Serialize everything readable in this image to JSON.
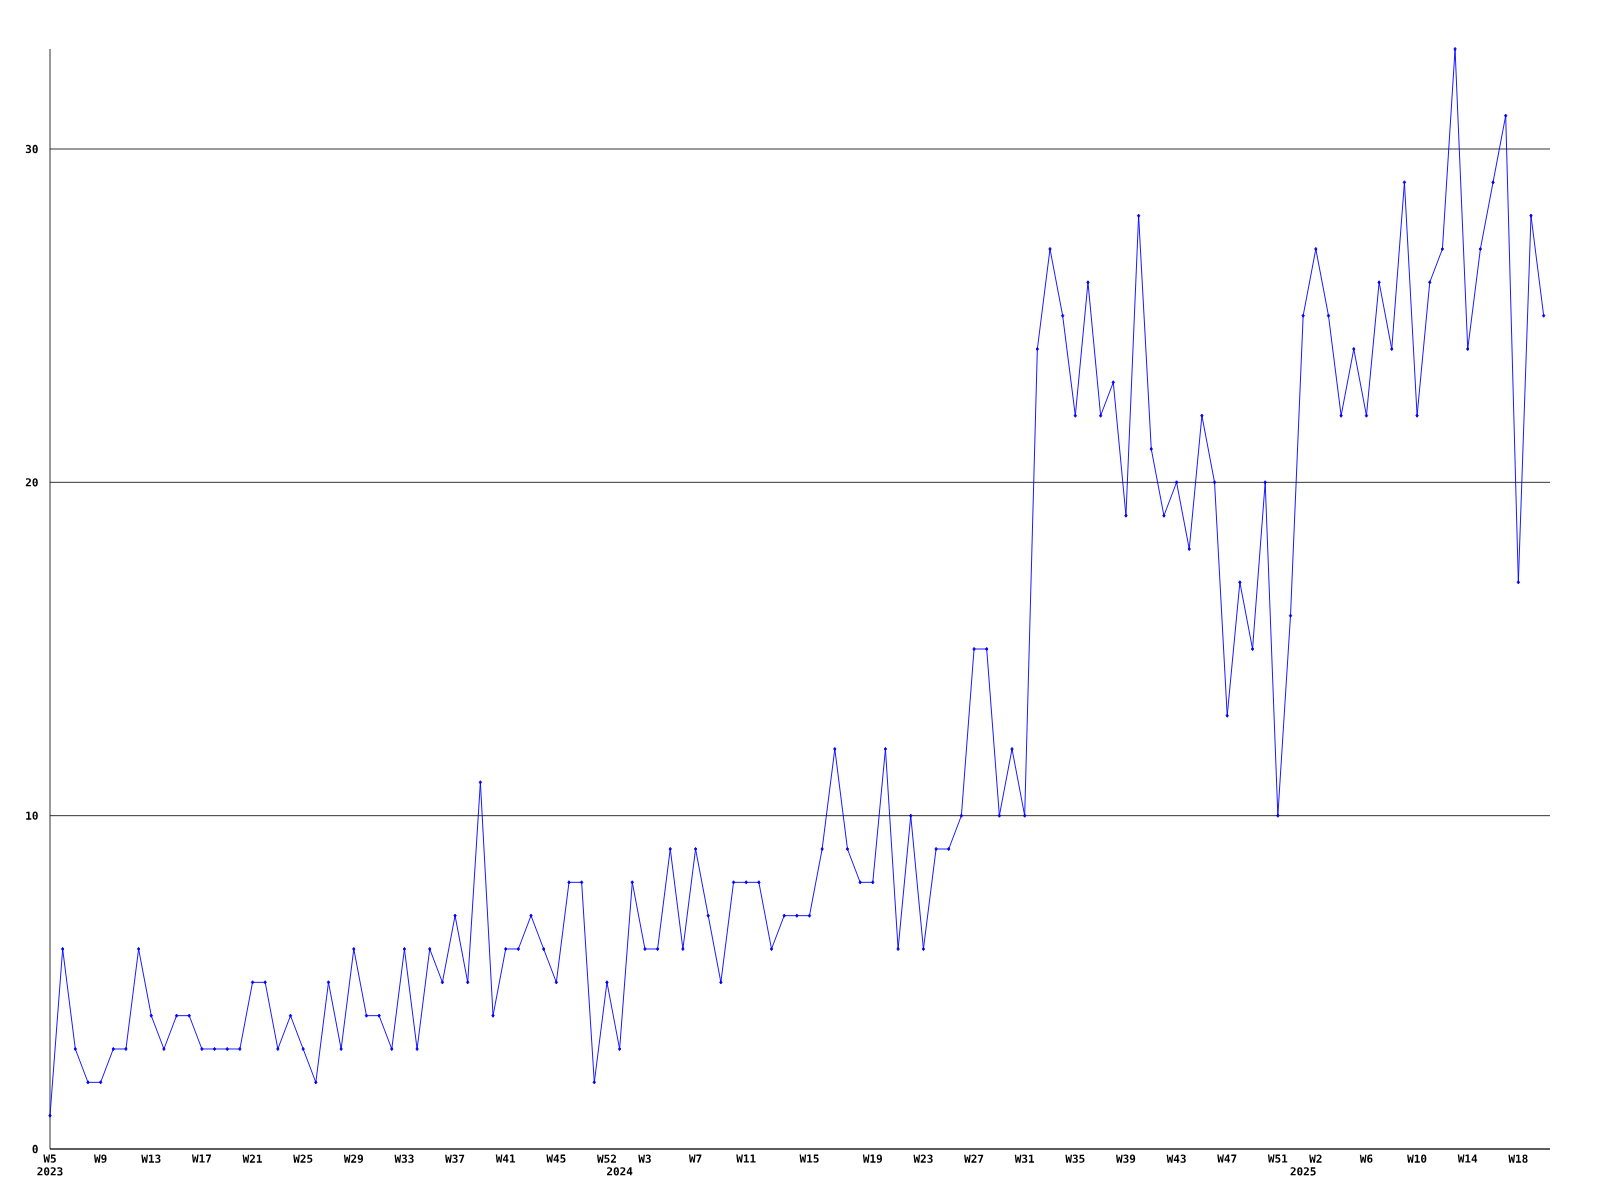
{
  "chart_data": {
    "type": "line",
    "categories": [
      "W5",
      null,
      null,
      null,
      "W9",
      null,
      null,
      null,
      "W13",
      null,
      null,
      null,
      "W17",
      null,
      null,
      null,
      "W21",
      null,
      null,
      null,
      "W25",
      null,
      null,
      null,
      "W29",
      null,
      null,
      null,
      "W33",
      null,
      null,
      null,
      "W37",
      null,
      null,
      null,
      "W41",
      null,
      null,
      null,
      "W45",
      null,
      null,
      null,
      "W52",
      null,
      null,
      "W3",
      null,
      null,
      null,
      "W7",
      null,
      null,
      null,
      "W11",
      null,
      null,
      null,
      null,
      "W15",
      null,
      null,
      null,
      null,
      "W19",
      null,
      null,
      null,
      "W23",
      null,
      null,
      null,
      "W27",
      null,
      null,
      null,
      "W31",
      null,
      null,
      null,
      "W35",
      null,
      null,
      null,
      "W39",
      null,
      null,
      null,
      "W43",
      null,
      null,
      null,
      "W47",
      null,
      null,
      null,
      "W51",
      null,
      null,
      "W2",
      null,
      null,
      null,
      "W6",
      null,
      null,
      null,
      "W10",
      null,
      null,
      null,
      "W14",
      null,
      null,
      null,
      "W18",
      null,
      null
    ],
    "series": [
      {
        "color": "#0000ff",
        "values": [
          1,
          6,
          3,
          2,
          2,
          3,
          3,
          6,
          4,
          3,
          4,
          4,
          3,
          3,
          3,
          3,
          5,
          5,
          3,
          4,
          3,
          2,
          5,
          3,
          6,
          4,
          4,
          3,
          6,
          3,
          6,
          5,
          7,
          5,
          11,
          4,
          6,
          6,
          7,
          6,
          5,
          8,
          8,
          2,
          5,
          3,
          8,
          6,
          6,
          9,
          6,
          9,
          7,
          5,
          8,
          8,
          8,
          6,
          7,
          7,
          7,
          9,
          12,
          9,
          8,
          8,
          12,
          6,
          10,
          6,
          9,
          9,
          10,
          15,
          15,
          10,
          12,
          10,
          24,
          27,
          25,
          22,
          26,
          22,
          23,
          19,
          28,
          21,
          19,
          20,
          18,
          22,
          20,
          13,
          17,
          15,
          20,
          10,
          16,
          25,
          27,
          25,
          22,
          24,
          22,
          26,
          24,
          29,
          22,
          26,
          27,
          33,
          24,
          27,
          29,
          31,
          17,
          28,
          25
        ]
      }
    ],
    "ylim": [
      0,
      33
    ],
    "yticks": [
      0,
      10,
      20,
      30
    ],
    "grid": "y",
    "marker": "diamond",
    "line_style": "solid",
    "annotations": [
      "2023",
      "2024",
      "2025"
    ]
  }
}
